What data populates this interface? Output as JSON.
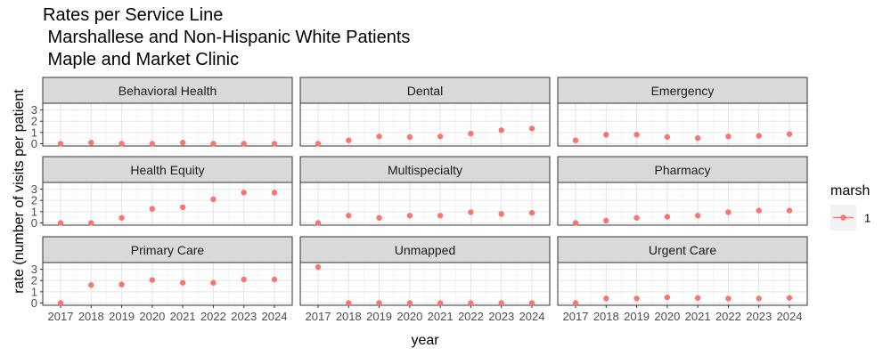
{
  "chart_data": {
    "type": "scatter",
    "title_lines": [
      "Rates per Service Line",
      " Marshallese and Non-Hispanic White Patients",
      " Maple and Market Clinic"
    ],
    "xlabel": "year",
    "ylabel": "rate (number of visits per patient",
    "x": [
      2017,
      2018,
      2019,
      2020,
      2021,
      2022,
      2023,
      2024
    ],
    "y_ticks": [
      0,
      1,
      2,
      3
    ],
    "ylim": [
      -0.2,
      3.6
    ],
    "grid": true,
    "point_color": "#F8766D",
    "legend": {
      "title": "marsh",
      "entries": [
        "1"
      ],
      "position": "right"
    },
    "panels": [
      {
        "name": "Behavioral Health",
        "values": [
          0.0,
          0.1,
          0.0,
          0.0,
          0.1,
          0.0,
          0.0,
          0.0
        ]
      },
      {
        "name": "Dental",
        "values": [
          0.0,
          0.3,
          0.65,
          0.6,
          0.65,
          0.9,
          1.2,
          1.35
        ]
      },
      {
        "name": "Emergency",
        "values": [
          0.3,
          0.8,
          0.8,
          0.6,
          0.5,
          0.65,
          0.7,
          0.85
        ]
      },
      {
        "name": "Health Equity",
        "values": [
          0.0,
          0.0,
          0.45,
          1.25,
          1.4,
          2.1,
          2.7,
          2.7
        ]
      },
      {
        "name": "Multispecialty",
        "values": [
          0.0,
          0.65,
          0.45,
          0.65,
          0.65,
          0.95,
          0.8,
          0.9
        ]
      },
      {
        "name": "Pharmacy",
        "values": [
          0.0,
          0.2,
          0.45,
          0.55,
          0.65,
          0.95,
          1.1,
          1.1
        ]
      },
      {
        "name": "Primary Care",
        "values": [
          0.0,
          1.6,
          1.65,
          2.05,
          1.8,
          1.8,
          2.1,
          2.1
        ]
      },
      {
        "name": "Unmapped",
        "values": [
          3.2,
          0.0,
          0.0,
          0.0,
          0.0,
          0.0,
          0.0,
          0.0
        ]
      },
      {
        "name": "Urgent Care",
        "values": [
          0.0,
          0.4,
          0.4,
          0.5,
          0.45,
          0.4,
          0.4,
          0.45
        ]
      }
    ]
  }
}
